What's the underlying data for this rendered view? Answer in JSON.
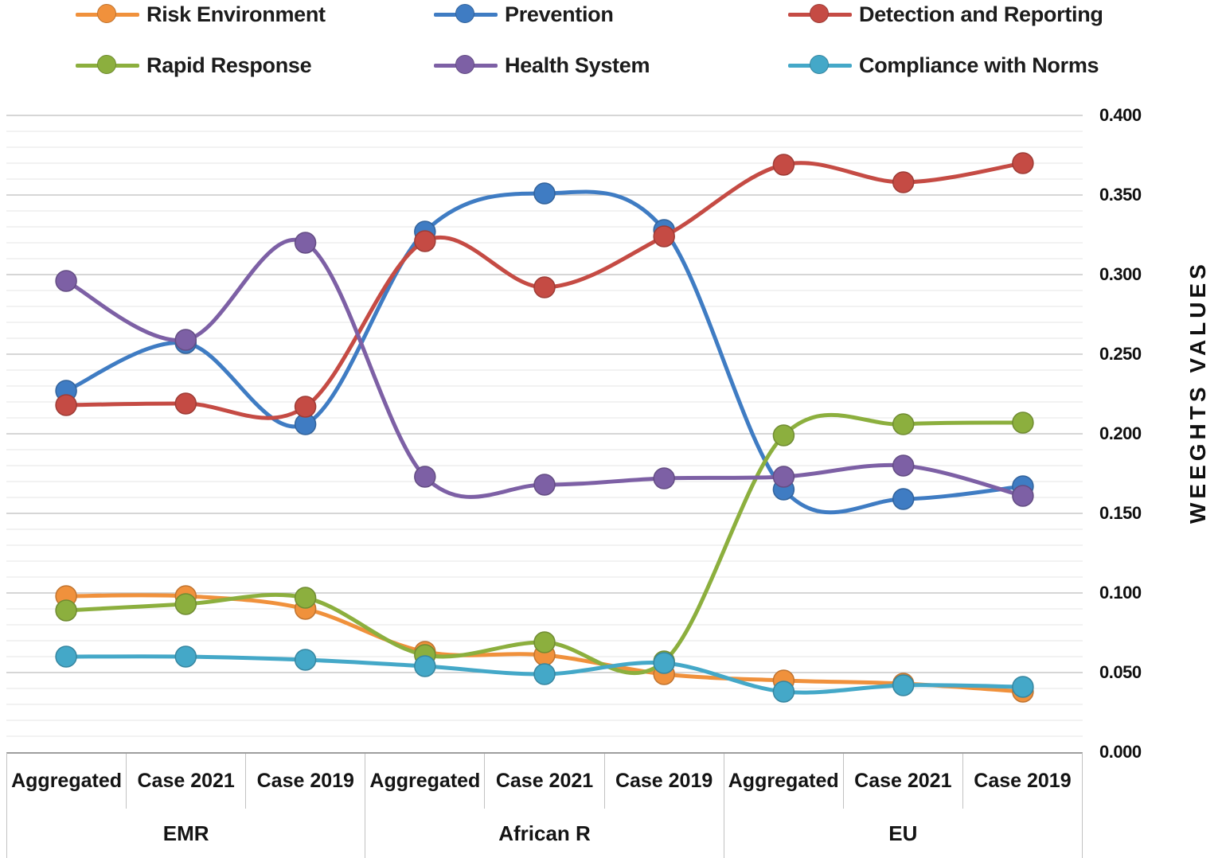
{
  "chart_data": {
    "type": "line",
    "smooth": true,
    "marker": "circle",
    "grid": true,
    "legend_position": "top",
    "ylabel": "WEEGHTS VALUES",
    "ylim": [
      0.0,
      0.4
    ],
    "y_major_step": 0.05,
    "y_minor_step": 0.01,
    "y_tick_labels": [
      "0.400",
      "0.350",
      "0.300",
      "0.250",
      "0.200",
      "0.150",
      "0.100",
      "0.050",
      "0.000"
    ],
    "groups": [
      {
        "label": "EMR",
        "categories": [
          "Aggregated",
          "Case 2021",
          "Case 2019"
        ]
      },
      {
        "label": "African R",
        "categories": [
          "Aggregated",
          "Case 2021",
          "Case 2019"
        ]
      },
      {
        "label": "EU",
        "categories": [
          "Aggregated",
          "Case 2021",
          "Case 2019"
        ]
      }
    ],
    "series": [
      {
        "name": "Risk Environment",
        "color": "#F0913C",
        "values": [
          0.098,
          0.098,
          0.09,
          0.063,
          0.061,
          0.049,
          0.045,
          0.043,
          0.038
        ]
      },
      {
        "name": "Prevention",
        "color": "#3F7CC3",
        "values": [
          0.227,
          0.257,
          0.206,
          0.327,
          0.351,
          0.328,
          0.165,
          0.159,
          0.167
        ]
      },
      {
        "name": "Detection and Reporting",
        "color": "#C54B44",
        "values": [
          0.218,
          0.219,
          0.217,
          0.321,
          0.292,
          0.324,
          0.369,
          0.358,
          0.37
        ]
      },
      {
        "name": "Rapid Response",
        "color": "#8CAF3E",
        "values": [
          0.089,
          0.093,
          0.097,
          0.061,
          0.069,
          0.057,
          0.199,
          0.206,
          0.207
        ]
      },
      {
        "name": "Health System",
        "color": "#7D60A5",
        "values": [
          0.296,
          0.259,
          0.32,
          0.173,
          0.168,
          0.172,
          0.173,
          0.18,
          0.161
        ]
      },
      {
        "name": "Compliance with Norms",
        "color": "#44A8C8",
        "values": [
          0.06,
          0.06,
          0.058,
          0.054,
          0.049,
          0.056,
          0.038,
          0.042,
          0.041
        ]
      }
    ]
  }
}
